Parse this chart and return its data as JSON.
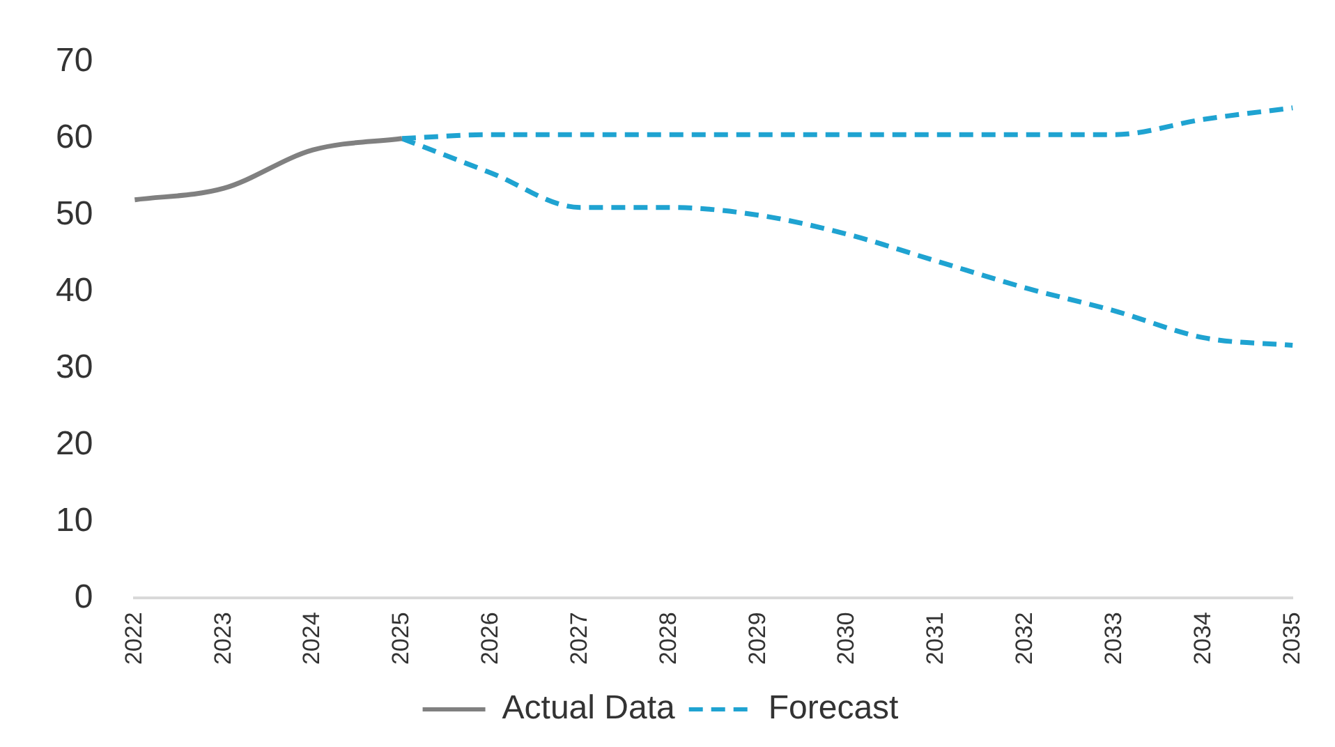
{
  "chart_data": {
    "type": "line",
    "categories": [
      "2022",
      "2023",
      "2024",
      "2025",
      "2026",
      "2027",
      "2028",
      "2029",
      "2030",
      "2031",
      "2032",
      "2033",
      "2034",
      "2035"
    ],
    "series": [
      {
        "name": "Actual Data",
        "color": "#808080",
        "line_style": "solid",
        "values": [
          52,
          53.5,
          58.5,
          60,
          null,
          null,
          null,
          null,
          null,
          null,
          null,
          null,
          null,
          null
        ]
      },
      {
        "name": "Forecast",
        "color": "#1fa3d1",
        "line_style": "dashed",
        "values": [
          null,
          null,
          null,
          60,
          60.5,
          60.5,
          60.5,
          60.5,
          60.5,
          60.5,
          60.5,
          60.5,
          62.5,
          64
        ]
      },
      {
        "color": "#1fa3d1",
        "line_style": "dashed",
        "values": [
          null,
          null,
          null,
          60,
          55.5,
          51,
          51,
          50,
          47.5,
          44,
          40.5,
          37.5,
          34,
          33
        ]
      }
    ],
    "ylim": [
      0,
      70
    ],
    "yticks": [
      0,
      10,
      20,
      30,
      40,
      50,
      60,
      70
    ],
    "grid": false,
    "legend": "bottom",
    "marker": "none"
  }
}
